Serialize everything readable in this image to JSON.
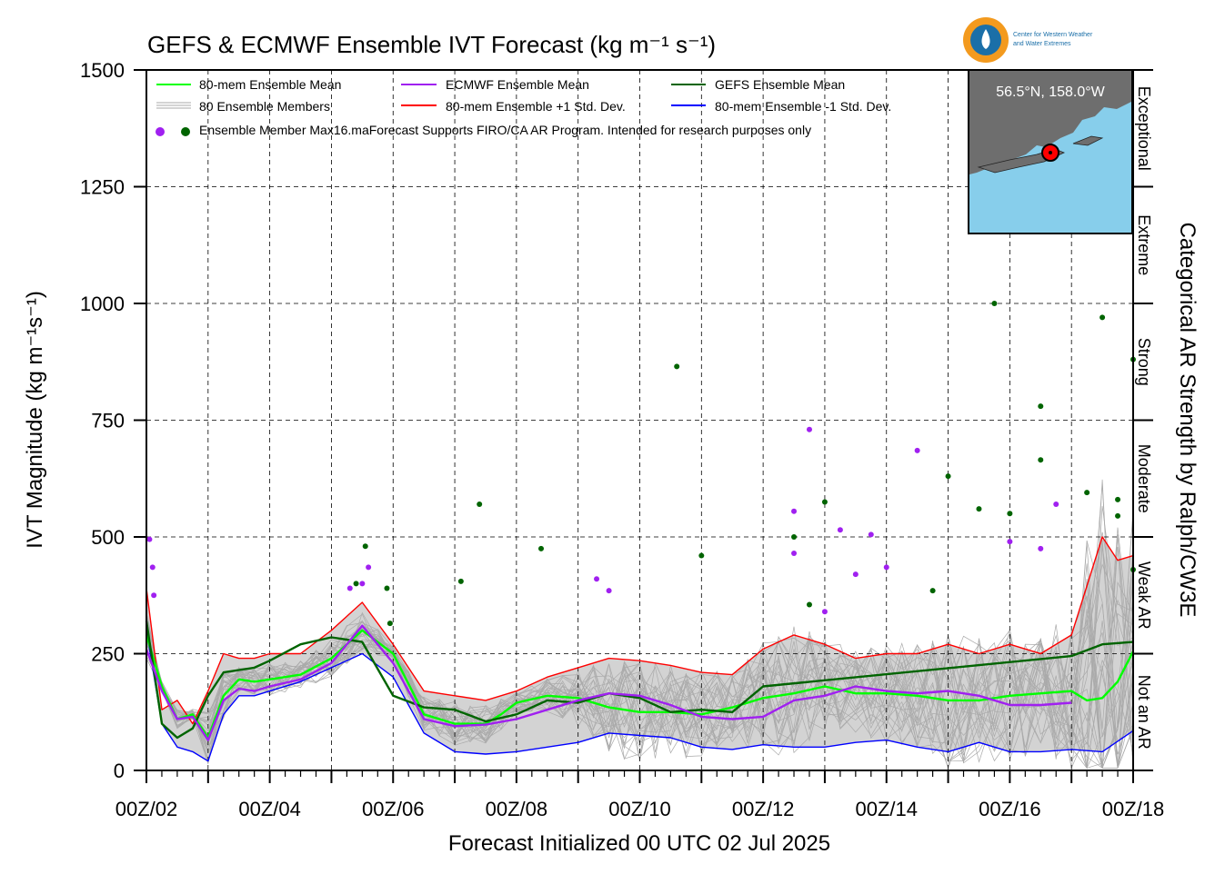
{
  "title": "GEFS & ECMWF Ensemble IVT Forecast (kg m⁻¹ s⁻¹)",
  "logo_text": [
    "Center for Western Weather",
    "and Water Extremes"
  ],
  "inset_map": {
    "label": "56.5°N, 158.0°W",
    "land_color": "#6e6e6e",
    "water_color": "#87ceeb",
    "marker_color": "#ff0000"
  },
  "legend": {
    "ensemble_mean": "80-mem Ensemble Mean",
    "ensemble_members": "80 Ensemble Members",
    "member_max": "Ensemble Member Max16.maForecast Supports FIRO/CA AR Program. Intended for research purposes only",
    "ecmwf_mean": "ECMWF Ensemble Mean",
    "plus_sd": "80-mem Ensemble +1 Std. Dev.",
    "gefs_mean": "GEFS Ensemble Mean",
    "minus_sd": "80-mem Ensemble -1 Std. Dev."
  },
  "colors": {
    "ensemble_mean": "#00ff00",
    "ecmwf_mean": "#a020f0",
    "gefs_mean": "#006400",
    "plus_sd": "#ff0000",
    "minus_sd": "#0000ff",
    "members": "#aaaaaa",
    "spread_fill": "#d3d3d3"
  },
  "categories": [
    "Exceptional",
    "Extreme",
    "Strong",
    "Moderate",
    "Weak AR",
    "Not an AR"
  ],
  "category_axis_label": "Categorical AR Strength by Ralph/CW3E",
  "chart_data": {
    "type": "line",
    "title": "GEFS & ECMWF Ensemble IVT Forecast (kg m⁻¹ s⁻¹)",
    "xlabel": "Forecast Initialized 00 UTC 02 Jul 2025",
    "ylabel": "IVT Magnitude (kg m⁻¹s⁻¹)",
    "ylim": [
      0,
      1500
    ],
    "xlim_days": [
      0,
      16
    ],
    "x_ticks": [
      "00Z/02",
      "00Z/04",
      "00Z/06",
      "00Z/08",
      "00Z/10",
      "00Z/12",
      "00Z/14",
      "00Z/16",
      "00Z/18"
    ],
    "y_ticks": [
      0,
      250,
      500,
      750,
      1000,
      1250,
      1500
    ],
    "grid": true,
    "legend_position": "top-left",
    "series": [
      {
        "name": "80-mem Ensemble Mean",
        "x": [
          0,
          0.25,
          0.5,
          0.75,
          1,
          1.25,
          1.5,
          1.75,
          2,
          2.5,
          3,
          3.5,
          4,
          4.5,
          5,
          5.25,
          5.5,
          5.75,
          6,
          6.5,
          7,
          7.5,
          8,
          8.5,
          9,
          9.5,
          10,
          10.5,
          11,
          11.5,
          12,
          12.5,
          13,
          13.5,
          14,
          14.5,
          15,
          15.25,
          15.5,
          15.75,
          16
        ],
        "y": [
          290,
          180,
          110,
          120,
          70,
          160,
          195,
          190,
          195,
          205,
          240,
          300,
          250,
          120,
          100,
          100,
          100,
          120,
          145,
          160,
          155,
          135,
          125,
          125,
          120,
          135,
          155,
          165,
          180,
          165,
          165,
          160,
          150,
          150,
          160,
          165,
          170,
          150,
          155,
          190,
          255
        ]
      },
      {
        "name": "ECMWF Ensemble Mean",
        "x": [
          0,
          0.25,
          0.5,
          0.75,
          1,
          1.25,
          1.5,
          1.75,
          2,
          2.5,
          3,
          3.5,
          4,
          4.5,
          5,
          5.5,
          6,
          6.5,
          7,
          7.5,
          8,
          8.5,
          9,
          9.5,
          10,
          10.5,
          11,
          11.5,
          12,
          12.5,
          13,
          13.5,
          14,
          14.5,
          15
        ],
        "y": [
          260,
          170,
          110,
          115,
          65,
          150,
          175,
          170,
          180,
          195,
          230,
          310,
          230,
          110,
          95,
          98,
          110,
          130,
          150,
          165,
          160,
          140,
          115,
          110,
          115,
          150,
          160,
          180,
          170,
          165,
          170,
          160,
          140,
          140,
          145
        ]
      },
      {
        "name": "GEFS Ensemble Mean",
        "x": [
          0,
          0.25,
          0.5,
          0.75,
          1,
          1.25,
          1.5,
          1.75,
          2,
          2.5,
          3,
          3.5,
          4,
          4.5,
          5,
          5.5,
          6,
          6.5,
          7,
          7.5,
          8,
          8.5,
          9,
          9.5,
          10,
          15,
          15.5,
          16
        ],
        "y": [
          320,
          100,
          70,
          90,
          160,
          210,
          215,
          220,
          235,
          270,
          285,
          275,
          160,
          135,
          130,
          105,
          120,
          150,
          145,
          165,
          155,
          125,
          130,
          125,
          180,
          245,
          270,
          275
        ]
      },
      {
        "name": "80-mem Ensemble +1 Std. Dev.",
        "x": [
          0,
          0.25,
          0.5,
          0.75,
          1,
          1.25,
          1.5,
          1.75,
          2,
          2.5,
          3,
          3.5,
          4,
          4.5,
          5,
          5.5,
          6,
          6.5,
          7,
          7.5,
          8,
          8.5,
          9,
          9.5,
          10,
          10.5,
          11,
          11.5,
          12,
          12.5,
          13,
          13.5,
          14,
          14.5,
          15,
          15.5,
          15.75,
          16
        ],
        "y": [
          390,
          130,
          150,
          100,
          170,
          250,
          240,
          240,
          250,
          250,
          300,
          360,
          270,
          170,
          160,
          150,
          170,
          200,
          220,
          240,
          235,
          225,
          210,
          205,
          260,
          290,
          270,
          240,
          250,
          250,
          270,
          250,
          270,
          250,
          290,
          500,
          450,
          460
        ]
      },
      {
        "name": "80-mem Ensemble -1 Std. Dev.",
        "x": [
          0,
          0.25,
          0.5,
          0.75,
          1,
          1.25,
          1.5,
          1.75,
          2,
          2.5,
          3,
          3.5,
          4,
          4.5,
          5,
          5.5,
          6,
          6.5,
          7,
          7.5,
          8,
          8.5,
          9,
          9.5,
          10,
          10.5,
          11,
          11.5,
          12,
          12.5,
          13,
          13.5,
          14,
          14.5,
          15,
          15.5,
          16
        ],
        "y": [
          300,
          100,
          50,
          40,
          20,
          120,
          160,
          160,
          170,
          190,
          220,
          250,
          200,
          80,
          40,
          35,
          40,
          50,
          60,
          80,
          75,
          70,
          50,
          45,
          55,
          50,
          50,
          60,
          65,
          50,
          40,
          60,
          40,
          40,
          45,
          40,
          85
        ]
      }
    ],
    "member_max_points": [
      {
        "x": 0.05,
        "y": 495,
        "source": "ECMWF"
      },
      {
        "x": 0.1,
        "y": 435,
        "source": "ECMWF"
      },
      {
        "x": 0.12,
        "y": 375,
        "source": "ECMWF"
      },
      {
        "x": 3.3,
        "y": 390,
        "source": "ECMWF"
      },
      {
        "x": 3.5,
        "y": 400,
        "source": "ECMWF"
      },
      {
        "x": 3.6,
        "y": 435,
        "source": "ECMWF"
      },
      {
        "x": 3.4,
        "y": 400,
        "source": "GEFS"
      },
      {
        "x": 3.55,
        "y": 480,
        "source": "GEFS"
      },
      {
        "x": 3.9,
        "y": 390,
        "source": "GEFS"
      },
      {
        "x": 3.95,
        "y": 315,
        "source": "GEFS"
      },
      {
        "x": 5.1,
        "y": 405,
        "source": "GEFS"
      },
      {
        "x": 5.4,
        "y": 570,
        "source": "GEFS"
      },
      {
        "x": 6.4,
        "y": 475,
        "source": "GEFS"
      },
      {
        "x": 7.3,
        "y": 410,
        "source": "ECMWF"
      },
      {
        "x": 7.5,
        "y": 385,
        "source": "ECMWF"
      },
      {
        "x": 8.6,
        "y": 865,
        "source": "GEFS"
      },
      {
        "x": 9.0,
        "y": 460,
        "source": "GEFS"
      },
      {
        "x": 10.5,
        "y": 555,
        "source": "ECMWF"
      },
      {
        "x": 10.5,
        "y": 465,
        "source": "ECMWF"
      },
      {
        "x": 10.5,
        "y": 500,
        "source": "GEFS"
      },
      {
        "x": 10.75,
        "y": 730,
        "source": "ECMWF"
      },
      {
        "x": 10.75,
        "y": 355,
        "source": "GEFS"
      },
      {
        "x": 11.0,
        "y": 575,
        "source": "GEFS"
      },
      {
        "x": 11.0,
        "y": 340,
        "source": "ECMWF"
      },
      {
        "x": 11.25,
        "y": 515,
        "source": "ECMWF"
      },
      {
        "x": 11.5,
        "y": 420,
        "source": "ECMWF"
      },
      {
        "x": 11.75,
        "y": 505,
        "source": "ECMWF"
      },
      {
        "x": 12.0,
        "y": 435,
        "source": "ECMWF"
      },
      {
        "x": 12.5,
        "y": 685,
        "source": "ECMWF"
      },
      {
        "x": 12.75,
        "y": 385,
        "source": "GEFS"
      },
      {
        "x": 13.0,
        "y": 630,
        "source": "GEFS"
      },
      {
        "x": 13.5,
        "y": 560,
        "source": "GEFS"
      },
      {
        "x": 13.75,
        "y": 1000,
        "source": "GEFS"
      },
      {
        "x": 14.0,
        "y": 550,
        "source": "GEFS"
      },
      {
        "x": 14.0,
        "y": 490,
        "source": "ECMWF"
      },
      {
        "x": 14.5,
        "y": 780,
        "source": "GEFS"
      },
      {
        "x": 14.5,
        "y": 665,
        "source": "GEFS"
      },
      {
        "x": 14.5,
        "y": 475,
        "source": "ECMWF"
      },
      {
        "x": 14.75,
        "y": 570,
        "source": "ECMWF"
      },
      {
        "x": 15.25,
        "y": 595,
        "source": "GEFS"
      },
      {
        "x": 15.5,
        "y": 970,
        "source": "GEFS"
      },
      {
        "x": 15.75,
        "y": 545,
        "source": "GEFS"
      },
      {
        "x": 15.75,
        "y": 580,
        "source": "GEFS"
      },
      {
        "x": 16.0,
        "y": 880,
        "source": "GEFS"
      },
      {
        "x": 16.0,
        "y": 430,
        "source": "GEFS"
      }
    ],
    "category_bounds": [
      0,
      250,
      500,
      750,
      1000,
      1250,
      1500
    ]
  }
}
